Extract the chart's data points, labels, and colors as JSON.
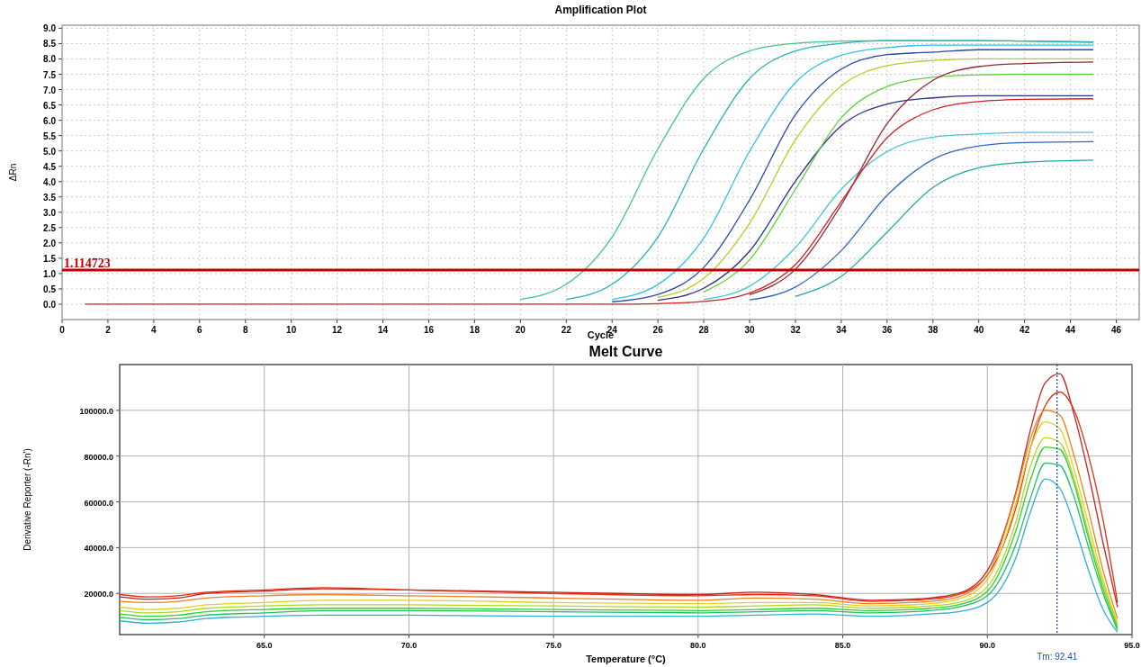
{
  "chart_data": [
    {
      "type": "line",
      "title": "Amplification Plot",
      "xlabel": "Cycle",
      "ylabel": "ΔRn",
      "x": [
        1,
        10,
        16,
        20,
        22,
        24,
        26,
        28,
        30,
        32,
        34,
        36,
        38,
        40,
        42,
        45
      ],
      "xlim": [
        0,
        47
      ],
      "ylim": [
        -0.5,
        9.1
      ],
      "xticks": [
        0,
        2,
        4,
        6,
        8,
        10,
        12,
        14,
        16,
        18,
        20,
        22,
        24,
        26,
        28,
        30,
        32,
        34,
        36,
        38,
        40,
        42,
        44,
        46
      ],
      "yticks": [
        {
          "value": 0,
          "label": "0.0"
        },
        {
          "value": 0.5,
          "label": "0.5"
        },
        {
          "value": 1,
          "label": "1.0"
        },
        {
          "value": 1.5,
          "label": "1.5"
        },
        {
          "value": 2,
          "label": "2.0"
        },
        {
          "value": 2.5,
          "label": "2.5"
        },
        {
          "value": 3,
          "label": "3.0"
        },
        {
          "value": 3.5,
          "label": "3.5"
        },
        {
          "value": 4,
          "label": "4.0"
        },
        {
          "value": 4.5,
          "label": "4.5"
        },
        {
          "value": 5,
          "label": "5.0"
        },
        {
          "value": 5.5,
          "label": "5.5"
        },
        {
          "value": 6,
          "label": "6.0"
        },
        {
          "value": 6.5,
          "label": "6.5"
        },
        {
          "value": 7,
          "label": "7.0"
        },
        {
          "value": 7.5,
          "label": "7.5"
        },
        {
          "value": 8,
          "label": "8.0"
        },
        {
          "value": 8.5,
          "label": "8.5"
        },
        {
          "value": 9,
          "label": "9.0"
        }
      ],
      "grid": true,
      "line_style": "solid",
      "series": [
        {
          "color": "#40c880",
          "values": [
            null,
            null,
            null,
            0.16,
            0.65,
            2.19,
            5.07,
            7.36,
            8.26,
            8.51,
            8.58,
            8.6,
            8.6,
            8.6,
            8.58,
            8.55
          ]
        },
        {
          "color": "#28b0b8",
          "values": [
            null,
            null,
            null,
            null,
            0.16,
            0.65,
            2.19,
            5.07,
            7.36,
            8.26,
            8.51,
            8.6,
            8.6,
            8.6,
            8.58,
            8.55
          ]
        },
        {
          "color": "#30c0e0",
          "values": [
            null,
            null,
            null,
            null,
            null,
            0.16,
            0.64,
            2.15,
            4.99,
            7.23,
            8.12,
            8.37,
            8.45,
            8.45,
            8.45,
            8.45
          ]
        },
        {
          "color": "#2848a8",
          "values": [
            null,
            null,
            null,
            null,
            null,
            0.08,
            0.32,
            1.2,
            3.4,
            6.18,
            7.67,
            8.14,
            8.22,
            8.3,
            8.3,
            8.3
          ]
        },
        {
          "color": "#b8cc20",
          "values": [
            null,
            null,
            null,
            null,
            null,
            null,
            0.22,
            0.84,
            2.64,
            5.36,
            7.12,
            7.78,
            7.95,
            8.0,
            8.0,
            8.0
          ]
        },
        {
          "color": "#283080",
          "values": [
            null,
            null,
            null,
            null,
            null,
            null,
            0.13,
            0.52,
            1.73,
            4.01,
            5.82,
            6.53,
            6.73,
            6.8,
            6.8,
            6.8
          ]
        },
        {
          "color": "#60d040",
          "values": [
            null,
            null,
            null,
            null,
            null,
            null,
            null,
            0.4,
            1.45,
            3.75,
            6.08,
            7.1,
            7.4,
            7.48,
            7.5,
            7.5
          ]
        },
        {
          "color": "#48c8d0",
          "values": [
            null,
            null,
            null,
            null,
            null,
            null,
            null,
            0.15,
            0.59,
            1.85,
            3.75,
            4.98,
            5.45,
            5.55,
            5.6,
            5.6
          ]
        },
        {
          "color": "#3068c0",
          "values": [
            null,
            null,
            null,
            null,
            null,
            null,
            null,
            null,
            0.14,
            0.56,
            1.75,
            3.55,
            4.72,
            5.16,
            5.27,
            5.3
          ]
        },
        {
          "color": "#902838",
          "values": [
            null,
            null,
            null,
            null,
            null,
            null,
            null,
            null,
            0.31,
            1.14,
            3.24,
            5.89,
            7.3,
            7.75,
            7.85,
            7.9
          ]
        },
        {
          "color": "#20a8a0",
          "values": [
            null,
            null,
            null,
            null,
            null,
            null,
            null,
            null,
            null,
            0.25,
            0.91,
            2.35,
            3.81,
            4.45,
            4.63,
            4.7
          ]
        },
        {
          "color": "#d02020",
          "values": [
            0,
            0,
            0,
            0,
            0,
            0,
            0.02,
            0.09,
            0.36,
            1.29,
            3.35,
            5.43,
            6.34,
            6.61,
            6.68,
            6.7
          ]
        }
      ],
      "ref_lines": [
        {
          "axis": "y",
          "value": 1.114723,
          "label": "1.114723",
          "color": "#c00000",
          "line_style": "solid"
        }
      ]
    },
    {
      "type": "line",
      "title": "Melt Curve",
      "xlabel": "Temperature (°C)",
      "ylabel": "Derivative Reporter (-Rn')",
      "x": [
        60,
        61,
        62,
        63,
        65,
        67,
        70,
        75,
        80,
        82,
        84,
        86,
        88,
        89,
        90,
        91,
        91.5,
        92,
        92.5,
        93,
        93.5,
        94,
        94.5
      ],
      "xlim": [
        60,
        95
      ],
      "ylim": [
        2000,
        120000
      ],
      "xticks": [
        {
          "value": 65,
          "label": "65.0"
        },
        {
          "value": 70,
          "label": "70.0"
        },
        {
          "value": 75,
          "label": "75.0"
        },
        {
          "value": 80,
          "label": "80.0"
        },
        {
          "value": 85,
          "label": "85.0"
        },
        {
          "value": 90,
          "label": "90.0"
        },
        {
          "value": 95,
          "label": "95.0"
        }
      ],
      "yticks": [
        {
          "value": 20000,
          "label": "20000.0"
        },
        {
          "value": 40000,
          "label": "40000.0"
        },
        {
          "value": 60000,
          "label": "60000.0"
        },
        {
          "value": 80000,
          "label": "80000.0"
        },
        {
          "value": 100000,
          "label": "100000.0"
        }
      ],
      "grid": true,
      "line_style": "solid",
      "series": [
        {
          "color": "#c82020",
          "values": [
            18500,
            17500,
            18000,
            20000,
            21000,
            22000,
            21500,
            20500,
            19500,
            20500,
            19500,
            17000,
            18000,
            20000,
            30000,
            65000,
            92000,
            112000,
            116000,
            98000,
            72000,
            42000,
            14000
          ]
        },
        {
          "color": "#e03010",
          "values": [
            19500,
            18500,
            19000,
            20500,
            21500,
            22500,
            21500,
            20000,
            19000,
            19500,
            19000,
            16500,
            17500,
            19500,
            28000,
            58000,
            84000,
            102000,
            108000,
            100000,
            80000,
            52000,
            16000
          ]
        },
        {
          "color": "#f08020",
          "values": [
            16500,
            16000,
            16500,
            18000,
            19000,
            19500,
            19000,
            18000,
            17000,
            18000,
            17500,
            15500,
            16500,
            18500,
            28000,
            64000,
            88000,
            100000,
            98000,
            80000,
            56000,
            30000,
            9000
          ]
        },
        {
          "color": "#e0d020",
          "values": [
            14000,
            13000,
            13500,
            15000,
            16000,
            17000,
            17000,
            16000,
            15500,
            16000,
            16000,
            14500,
            15500,
            17500,
            26000,
            60000,
            84000,
            95000,
            92000,
            74000,
            50000,
            26000,
            7000
          ]
        },
        {
          "color": "#b0d820",
          "values": [
            12500,
            11500,
            12000,
            13500,
            14500,
            15000,
            15000,
            14500,
            14000,
            14500,
            15000,
            13500,
            14500,
            16000,
            23000,
            52000,
            76000,
            88000,
            86000,
            70000,
            46000,
            24000,
            6000
          ]
        },
        {
          "color": "#30d030",
          "values": [
            11000,
            10000,
            10500,
            12000,
            13000,
            13500,
            13500,
            13000,
            12500,
            13000,
            13500,
            12500,
            13500,
            15000,
            21000,
            48000,
            70000,
            84000,
            83000,
            68000,
            44000,
            22000,
            5000
          ]
        },
        {
          "color": "#20c060",
          "values": [
            9500,
            8500,
            9000,
            10500,
            11500,
            12500,
            12500,
            12000,
            11500,
            12000,
            12500,
            11500,
            12500,
            14000,
            19000,
            42000,
            62000,
            77000,
            76000,
            62000,
            40000,
            20000,
            4000
          ]
        },
        {
          "color": "#30b0d0",
          "values": [
            8000,
            7000,
            7500,
            9000,
            10000,
            10500,
            10500,
            10000,
            10000,
            10500,
            11000,
            10000,
            11000,
            12000,
            16000,
            36000,
            56000,
            70000,
            66000,
            50000,
            30000,
            13000,
            3000
          ]
        }
      ],
      "ref_lines": [
        {
          "axis": "x",
          "value": 92.41,
          "label": "Tm: 92.41",
          "color": "#2050a0",
          "line_style": "dotted"
        }
      ]
    }
  ]
}
